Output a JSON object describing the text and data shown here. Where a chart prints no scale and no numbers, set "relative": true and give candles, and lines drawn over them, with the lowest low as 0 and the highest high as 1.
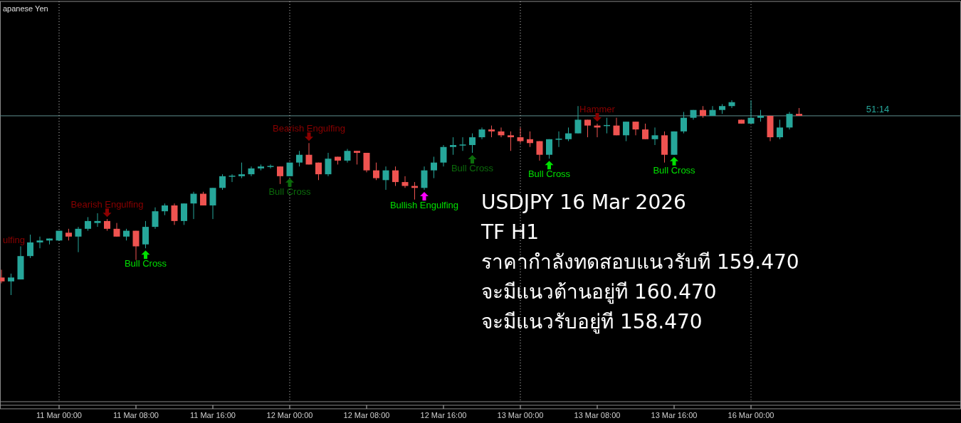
{
  "chart_data": {
    "type": "candlestick",
    "title": "apanese Yen",
    "relative": true,
    "categories": [
      null,
      null,
      null,
      null,
      null,
      null,
      "11 Mar 00:00",
      null,
      null,
      null,
      null,
      null,
      null,
      null,
      "11 Mar 08:00",
      null,
      null,
      null,
      null,
      null,
      null,
      null,
      "11 Mar 16:00",
      null,
      null,
      null,
      null,
      null,
      null,
      null,
      "12 Mar 00:00",
      null,
      null,
      null,
      null,
      null,
      null,
      null,
      "12 Mar 08:00",
      null,
      null,
      null,
      null,
      null,
      null,
      null,
      "12 Mar 16:00",
      null,
      null,
      null,
      null,
      null,
      null,
      null,
      "13 Mar 00:00",
      null,
      null,
      null,
      null,
      null,
      null,
      null,
      "13 Mar 08:00",
      null,
      null,
      null,
      null,
      null,
      null,
      null,
      "13 Mar 16:00",
      null,
      null,
      null,
      null,
      null,
      null,
      null,
      "16 Mar 00:00",
      null,
      null,
      null,
      null,
      null
    ],
    "ohlc": [
      [
        0.09,
        0.13,
        0.06,
        0.07
      ],
      [
        0.07,
        0.11,
        0,
        0.09
      ],
      [
        0.08,
        0.25,
        0.08,
        0.2
      ],
      [
        0.2,
        0.31,
        0.19,
        0.27
      ],
      [
        0.27,
        0.3,
        0.24,
        0.28
      ],
      [
        0.28,
        0.29,
        0.26,
        0.29
      ],
      [
        0.28,
        0.33,
        0.28,
        0.33
      ],
      [
        0.32,
        0.34,
        0.28,
        0.3
      ],
      [
        0.3,
        0.35,
        0.22,
        0.34
      ],
      [
        0.34,
        0.4,
        0.33,
        0.38
      ],
      [
        0.37,
        0.42,
        0.35,
        0.38
      ],
      [
        0.38,
        0.39,
        0.33,
        0.34
      ],
      [
        0.34,
        0.37,
        0.3,
        0.3
      ],
      [
        0.3,
        0.34,
        0.28,
        0.33
      ],
      [
        0.33,
        0.33,
        0.18,
        0.25
      ],
      [
        0.26,
        0.38,
        0.24,
        0.35
      ],
      [
        0.35,
        0.45,
        0.34,
        0.43
      ],
      [
        0.43,
        0.47,
        0.41,
        0.46
      ],
      [
        0.46,
        0.47,
        0.36,
        0.38
      ],
      [
        0.38,
        0.47,
        0.36,
        0.47
      ],
      [
        0.47,
        0.53,
        0.39,
        0.52
      ],
      [
        0.52,
        0.53,
        0.46,
        0.46
      ],
      [
        0.46,
        0.55,
        0.39,
        0.55
      ],
      [
        0.55,
        0.62,
        0.54,
        0.61
      ],
      [
        0.61,
        0.62,
        0.58,
        0.61
      ],
      [
        0.61,
        0.68,
        0.6,
        0.62
      ],
      [
        0.62,
        0.66,
        0.61,
        0.65
      ],
      [
        0.65,
        0.67,
        0.64,
        0.66
      ],
      [
        0.66,
        0.67,
        0.65,
        0.66
      ],
      [
        0.66,
        0.66,
        0.57,
        0.61
      ],
      [
        0.61,
        0.68,
        0.61,
        0.68
      ],
      [
        0.68,
        0.74,
        0.66,
        0.72
      ],
      [
        0.72,
        0.78,
        0.67,
        0.67
      ],
      [
        0.68,
        0.68,
        0.59,
        0.62
      ],
      [
        0.62,
        0.73,
        0.61,
        0.7
      ],
      [
        0.71,
        0.71,
        0.67,
        0.69
      ],
      [
        0.69,
        0.75,
        0.68,
        0.74
      ],
      [
        0.74,
        0.74,
        0.67,
        0.73
      ],
      [
        0.73,
        0.73,
        0.63,
        0.64
      ],
      [
        0.64,
        0.68,
        0.59,
        0.6
      ],
      [
        0.59,
        0.66,
        0.54,
        0.64
      ],
      [
        0.64,
        0.66,
        0.56,
        0.58
      ],
      [
        0.58,
        0.61,
        0.55,
        0.56
      ],
      [
        0.56,
        0.58,
        0.49,
        0.55
      ],
      [
        0.55,
        0.66,
        0.54,
        0.64
      ],
      [
        0.64,
        0.71,
        0.6,
        0.68
      ],
      [
        0.68,
        0.77,
        0.66,
        0.76
      ],
      [
        0.76,
        0.81,
        0.72,
        0.77
      ],
      [
        0.77,
        0.81,
        0.74,
        0.77
      ],
      [
        0.77,
        0.83,
        0.73,
        0.81
      ],
      [
        0.81,
        0.86,
        0.8,
        0.85
      ],
      [
        0.85,
        0.87,
        0.81,
        0.84
      ],
      [
        0.84,
        0.86,
        0.81,
        0.82
      ],
      [
        0.82,
        0.84,
        0.74,
        0.81
      ],
      [
        0.81,
        0.86,
        0.78,
        0.79
      ],
      [
        0.8,
        0.84,
        0.76,
        0.78
      ],
      [
        0.79,
        0.79,
        0.69,
        0.72
      ],
      [
        0.72,
        0.8,
        0.7,
        0.8
      ],
      [
        0.8,
        0.84,
        0.76,
        0.8
      ],
      [
        0.8,
        0.86,
        0.79,
        0.83
      ],
      [
        0.83,
        0.97,
        0.83,
        0.9
      ],
      [
        0.9,
        0.9,
        0.81,
        0.87
      ],
      [
        0.87,
        0.88,
        0.81,
        0.86
      ],
      [
        0.87,
        0.91,
        0.83,
        0.87
      ],
      [
        0.87,
        0.91,
        0.82,
        0.82
      ],
      [
        0.82,
        0.89,
        0.79,
        0.89
      ],
      [
        0.89,
        0.89,
        0.82,
        0.85
      ],
      [
        0.85,
        0.88,
        0.8,
        0.8
      ],
      [
        0.8,
        0.86,
        0.77,
        0.82
      ],
      [
        0.82,
        0.84,
        0.68,
        0.72
      ],
      [
        0.72,
        0.84,
        0.72,
        0.84
      ],
      [
        0.84,
        0.94,
        0.83,
        0.91
      ],
      [
        0.91,
        0.95,
        0.9,
        0.95
      ],
      [
        0.95,
        0.97,
        0.91,
        0.92
      ],
      [
        0.92,
        0.97,
        0.92,
        0.95
      ],
      [
        0.95,
        0.98,
        0.93,
        0.97
      ],
      [
        0.97,
        1,
        0.96,
        0.99
      ],
      [
        0.9,
        0.9,
        0.88,
        0.88
      ],
      [
        0.88,
        1,
        0.88,
        0.91
      ],
      [
        0.91,
        0.95,
        0.89,
        0.92
      ],
      [
        0.92,
        0.92,
        0.79,
        0.81
      ],
      [
        0.81,
        0.9,
        0.8,
        0.86
      ],
      [
        0.86,
        0.94,
        0.85,
        0.93
      ],
      [
        0.93,
        0.96,
        0.92,
        0.92
      ]
    ],
    "ref_lines": [
      {
        "axis": "y",
        "value": 0.92,
        "color": "#5f8f8f",
        "line_style": "solid"
      },
      {
        "axis": "x",
        "value": "11 Mar 00:00",
        "color": "#c8c8c8",
        "line_style": "dotted"
      },
      {
        "axis": "x",
        "value": "12 Mar 00:00",
        "color": "#c8c8c8",
        "line_style": "dotted"
      },
      {
        "axis": "x",
        "value": "13 Mar 00:00",
        "color": "#c8c8c8",
        "line_style": "dotted"
      },
      {
        "axis": "x",
        "value": "16 Mar 00:00",
        "color": "#a0a0a0",
        "line_style": "dotted"
      }
    ],
    "annotations": [
      "Bearish Engulfing",
      "Bull Cross",
      "Bull Cross",
      "Bearish Engulfing",
      "Bullish Engulfing",
      "Bull Cross",
      "Bull Cross",
      "Hammer",
      "Bull Cross",
      "51:14",
      "USDJPY 16 Mar 2026",
      "TF H1",
      "ราคากำลังทดสอบแนวรับที 159.470",
      "จะมีแนวต้านอยู่ที 160.470",
      "จะมีแนวรับอยู่ที 158.470",
      "ulfing"
    ]
  }
}
